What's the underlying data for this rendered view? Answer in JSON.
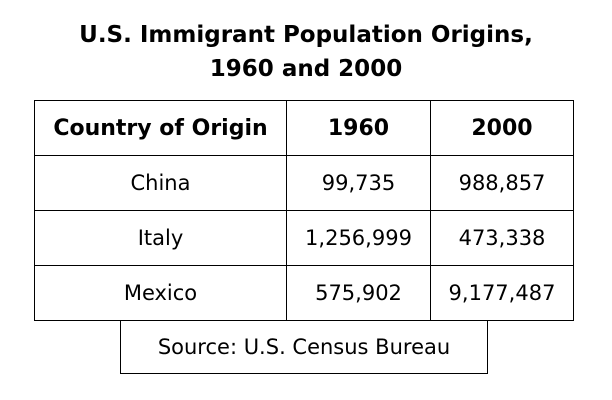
{
  "title": {
    "line1": "U.S. Immigrant Population Origins,",
    "line2": "1960 and 2000"
  },
  "table": {
    "headers": [
      "Country of Origin",
      "1960",
      "2000"
    ],
    "rows": [
      [
        "China",
        "99,735",
        "988,857"
      ],
      [
        "Italy",
        "1,256,999",
        "473,338"
      ],
      [
        "Mexico",
        "575,902",
        "9,177,487"
      ]
    ]
  },
  "source": "Source: U.S. Census Bureau"
}
